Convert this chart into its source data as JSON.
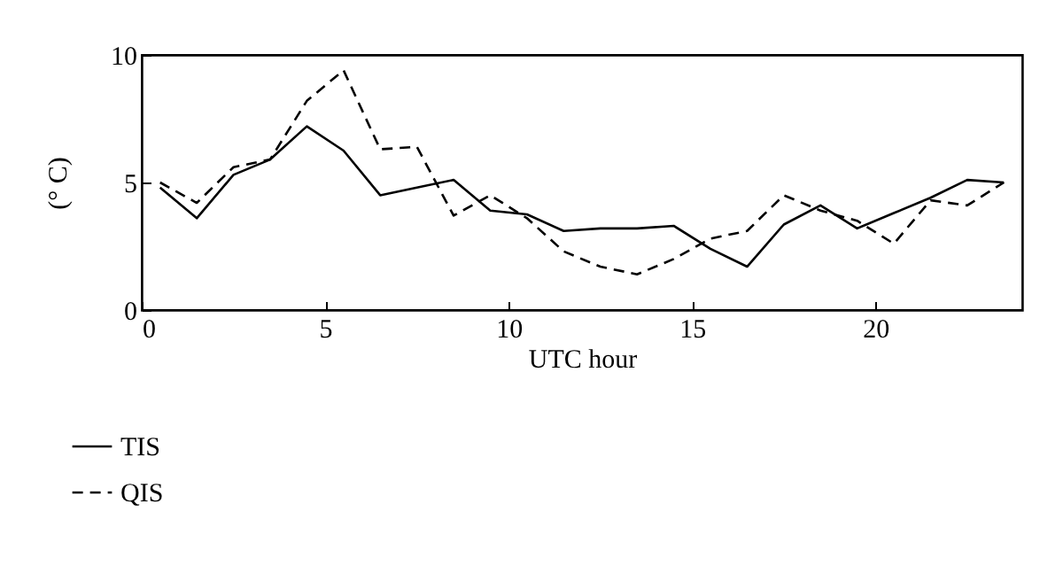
{
  "chart_data": {
    "type": "line",
    "xlabel": "UTC hour",
    "ylabel": "(° C)",
    "xlim": [
      0,
      24
    ],
    "ylim": [
      0,
      10
    ],
    "xticks": [
      0,
      5,
      10,
      15,
      20
    ],
    "yticks": [
      0,
      5,
      10
    ],
    "grid": false,
    "legend": "bottom",
    "x": [
      0.5,
      1.5,
      2.5,
      3.5,
      4.5,
      5.5,
      6.5,
      7.5,
      8.5,
      9.5,
      10.5,
      11.5,
      12.5,
      13.5,
      14.5,
      15.5,
      16.5,
      17.5,
      18.5,
      19.5,
      20.5,
      21.5,
      22.5,
      23.5
    ],
    "series": [
      {
        "name": "TIS",
        "color": "#000000",
        "line_style": "solid",
        "values": [
          4.8,
          3.6,
          5.3,
          5.9,
          7.2,
          6.25,
          4.5,
          4.8,
          5.1,
          3.9,
          3.75,
          3.1,
          3.2,
          3.2,
          3.3,
          2.4,
          1.7,
          3.35,
          4.1,
          3.2,
          3.8,
          4.4,
          5.1,
          5.0
        ]
      },
      {
        "name": "QIS",
        "color": "#000000",
        "line_style": "dashed",
        "values": [
          5.0,
          4.2,
          5.6,
          5.9,
          8.2,
          9.4,
          6.3,
          6.4,
          3.7,
          4.5,
          3.6,
          2.3,
          1.7,
          1.4,
          2.0,
          2.8,
          3.1,
          4.5,
          3.9,
          3.5,
          2.6,
          4.3,
          4.1,
          5.0
        ]
      }
    ]
  }
}
